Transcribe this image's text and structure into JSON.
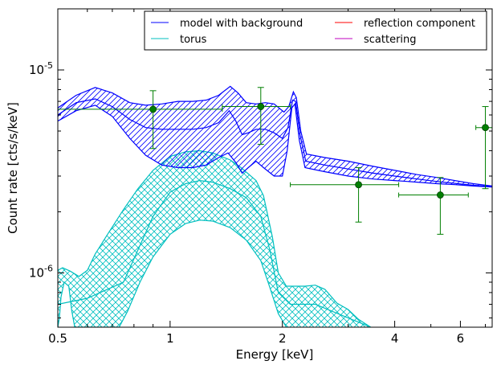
{
  "chart_data": {
    "type": "line",
    "xlabel": "Energy [keV]",
    "ylabel": "Count rate [cts/s/keV]",
    "xscale": "log",
    "yscale": "log",
    "xlim": [
      0.5,
      7.3
    ],
    "ylim": [
      5.4e-07,
      2e-05
    ],
    "x_ticks": [
      {
        "value": 0.5,
        "label": "0.5"
      },
      {
        "value": 1,
        "label": "1"
      },
      {
        "value": 2,
        "label": "2"
      },
      {
        "value": 4,
        "label": "4"
      },
      {
        "value": 6,
        "label": "6"
      }
    ],
    "y_ticks": [
      {
        "value": 1e-06,
        "base": "10",
        "exp": "-6"
      },
      {
        "value": 1e-05,
        "base": "10",
        "exp": "-5"
      }
    ],
    "grid": false,
    "legend": {
      "placement": "top-right",
      "columns": 2,
      "entries": [
        {
          "label": "model with background",
          "color": "#0000ff"
        },
        {
          "label": "torus",
          "color": "#00bfbf"
        },
        {
          "label": "reflection component",
          "color": "#ff0000"
        },
        {
          "label": "scattering",
          "color": "#bf00bf"
        }
      ]
    },
    "series": [
      {
        "name": "model with background",
        "color": "#0000ff",
        "hatch": "diagonal",
        "upper": [
          [
            0.5,
            6.5e-06
          ],
          [
            0.56,
            7.5e-06
          ],
          [
            0.63,
            8.2e-06
          ],
          [
            0.7,
            7.7e-06
          ],
          [
            0.78,
            6.9e-06
          ],
          [
            0.86,
            6.7e-06
          ],
          [
            0.95,
            6.8e-06
          ],
          [
            1.05,
            7e-06
          ],
          [
            1.15,
            7e-06
          ],
          [
            1.25,
            7.1e-06
          ],
          [
            1.35,
            7.5e-06
          ],
          [
            1.45,
            8.3e-06
          ],
          [
            1.52,
            7.7e-06
          ],
          [
            1.6,
            6.9e-06
          ],
          [
            1.7,
            6.8e-06
          ],
          [
            1.8,
            6.9e-06
          ],
          [
            1.9,
            6.8e-06
          ],
          [
            2.02,
            6.2e-06
          ],
          [
            2.08,
            6.6e-06
          ],
          [
            2.14,
            7.8e-06
          ],
          [
            2.18,
            7.3e-06
          ],
          [
            2.24,
            5e-06
          ],
          [
            2.32,
            3.85e-06
          ],
          [
            2.6,
            3.7e-06
          ],
          [
            3.0,
            3.55e-06
          ],
          [
            3.5,
            3.35e-06
          ],
          [
            4.0,
            3.2e-06
          ],
          [
            4.6,
            3.05e-06
          ],
          [
            5.2,
            2.95e-06
          ],
          [
            5.8,
            2.85e-06
          ],
          [
            6.5,
            2.75e-06
          ],
          [
            7.3,
            2.68e-06
          ]
        ],
        "lower": [
          [
            0.5,
            5.6e-06
          ],
          [
            0.56,
            6.3e-06
          ],
          [
            0.63,
            6.7e-06
          ],
          [
            0.7,
            5.9e-06
          ],
          [
            0.78,
            4.6e-06
          ],
          [
            0.86,
            3.8e-06
          ],
          [
            0.95,
            3.4e-06
          ],
          [
            1.05,
            3.3e-06
          ],
          [
            1.15,
            3.3e-06
          ],
          [
            1.25,
            3.4e-06
          ],
          [
            1.35,
            3.7e-06
          ],
          [
            1.43,
            3.9e-06
          ],
          [
            1.5,
            3.5e-06
          ],
          [
            1.56,
            3.1e-06
          ],
          [
            1.62,
            3.3e-06
          ],
          [
            1.7,
            3.55e-06
          ],
          [
            1.78,
            3.3e-06
          ],
          [
            1.9,
            3e-06
          ],
          [
            2.0,
            3e-06
          ],
          [
            2.06,
            4e-06
          ],
          [
            2.12,
            6.5e-06
          ],
          [
            2.16,
            6.8e-06
          ],
          [
            2.22,
            4.5e-06
          ],
          [
            2.3,
            3.3e-06
          ],
          [
            2.6,
            3.15e-06
          ],
          [
            3.0,
            3e-06
          ],
          [
            3.5,
            2.9e-06
          ],
          [
            4.0,
            2.85e-06
          ],
          [
            4.6,
            2.8e-06
          ],
          [
            5.2,
            2.75e-06
          ],
          [
            5.8,
            2.72e-06
          ],
          [
            6.5,
            2.68e-06
          ],
          [
            7.3,
            2.65e-06
          ]
        ],
        "middle": [
          [
            0.5,
            6e-06
          ],
          [
            0.56,
            6.9e-06
          ],
          [
            0.63,
            7.2e-06
          ],
          [
            0.7,
            6.6e-06
          ],
          [
            0.78,
            5.7e-06
          ],
          [
            0.86,
            5.2e-06
          ],
          [
            0.95,
            5.1e-06
          ],
          [
            1.05,
            5.1e-06
          ],
          [
            1.15,
            5.1e-06
          ],
          [
            1.25,
            5.2e-06
          ],
          [
            1.35,
            5.5e-06
          ],
          [
            1.44,
            6.3e-06
          ],
          [
            1.5,
            5.6e-06
          ],
          [
            1.56,
            4.8e-06
          ],
          [
            1.62,
            4.9e-06
          ],
          [
            1.7,
            5.1e-06
          ],
          [
            1.8,
            5.1e-06
          ],
          [
            1.9,
            4.9e-06
          ],
          [
            2.0,
            4.6e-06
          ],
          [
            2.07,
            5.2e-06
          ],
          [
            2.13,
            7.1e-06
          ],
          [
            2.17,
            7e-06
          ],
          [
            2.23,
            4.8e-06
          ],
          [
            2.31,
            3.55e-06
          ],
          [
            2.6,
            3.4e-06
          ],
          [
            3.0,
            3.25e-06
          ],
          [
            3.5,
            3.1e-06
          ],
          [
            4.0,
            3e-06
          ],
          [
            4.6,
            2.9e-06
          ],
          [
            5.2,
            2.82e-06
          ],
          [
            5.8,
            2.76e-06
          ],
          [
            6.5,
            2.7e-06
          ],
          [
            7.3,
            2.66e-06
          ]
        ]
      },
      {
        "name": "torus",
        "color": "#00bfbf",
        "hatch": "cross",
        "upper": [
          [
            0.5,
            1.03e-06
          ],
          [
            0.515,
            1.06e-06
          ],
          [
            0.54,
            1.02e-06
          ],
          [
            0.57,
            9.6e-07
          ],
          [
            0.6,
            1.03e-06
          ],
          [
            0.63,
            1.24e-06
          ],
          [
            0.68,
            1.55e-06
          ],
          [
            0.75,
            2.05e-06
          ],
          [
            0.82,
            2.6e-06
          ],
          [
            0.9,
            3.2e-06
          ],
          [
            1.0,
            3.75e-06
          ],
          [
            1.1,
            3.95e-06
          ],
          [
            1.2,
            4e-06
          ],
          [
            1.3,
            3.9e-06
          ],
          [
            1.45,
            3.6e-06
          ],
          [
            1.55,
            3.3e-06
          ],
          [
            1.7,
            2.85e-06
          ],
          [
            1.78,
            2.4e-06
          ],
          [
            1.88,
            1.5e-06
          ],
          [
            1.95,
            1e-06
          ],
          [
            2.05,
            8.6e-07
          ],
          [
            2.3,
            8.6e-07
          ],
          [
            2.45,
            8.7e-07
          ],
          [
            2.6,
            8.3e-07
          ],
          [
            2.8,
            7.1e-07
          ],
          [
            3.0,
            6.6e-07
          ],
          [
            3.2,
            5.9e-07
          ],
          [
            3.45,
            5.4e-07
          ]
        ],
        "lower": [
          [
            0.5,
            5.4e-07
          ],
          [
            0.505,
            6e-07
          ],
          [
            0.51,
            7.6e-07
          ],
          [
            0.52,
            9e-07
          ],
          [
            0.535,
            8.6e-07
          ],
          [
            0.545,
            6.5e-07
          ],
          [
            0.555,
            5.4e-07
          ],
          [
            0.73,
            5.4e-07
          ],
          [
            0.77,
            6.5e-07
          ],
          [
            0.83,
            9e-07
          ],
          [
            0.9,
            1.2e-06
          ],
          [
            1.0,
            1.55e-06
          ],
          [
            1.1,
            1.75e-06
          ],
          [
            1.2,
            1.82e-06
          ],
          [
            1.3,
            1.8e-06
          ],
          [
            1.45,
            1.67e-06
          ],
          [
            1.6,
            1.45e-06
          ],
          [
            1.75,
            1.15e-06
          ],
          [
            1.85,
            8.5e-07
          ],
          [
            1.95,
            6.3e-07
          ],
          [
            2.05,
            5.4e-07
          ]
        ],
        "middle": [
          [
            0.5,
            7e-07
          ],
          [
            0.6,
            7.5e-07
          ],
          [
            0.75,
            9e-07
          ],
          [
            0.9,
            1.9e-06
          ],
          [
            1.0,
            2.5e-06
          ],
          [
            1.1,
            2.75e-06
          ],
          [
            1.2,
            2.85e-06
          ],
          [
            1.3,
            2.8e-06
          ],
          [
            1.45,
            2.6e-06
          ],
          [
            1.6,
            2.35e-06
          ],
          [
            1.75,
            1.9e-06
          ],
          [
            1.85,
            1.3e-06
          ],
          [
            1.95,
            8e-07
          ],
          [
            2.1,
            7e-07
          ],
          [
            2.45,
            7e-07
          ],
          [
            3.0,
            6e-07
          ],
          [
            3.45,
            5.4e-07
          ]
        ]
      }
    ],
    "data_points": {
      "color": "#007f00",
      "points": [
        {
          "x": 0.9,
          "y": 6.4e-06,
          "xerr": [
            0.5,
            1.38
          ],
          "yerr": [
            4.1e-06,
            7.9e-06
          ]
        },
        {
          "x": 1.75,
          "y": 6.6e-06,
          "xerr": [
            1.38,
            2.1
          ],
          "yerr": [
            4.3e-06,
            8.2e-06
          ]
        },
        {
          "x": 3.2,
          "y": 2.72e-06,
          "xerr": [
            2.1,
            4.1
          ],
          "yerr": [
            1.78e-06,
            3.3e-06
          ]
        },
        {
          "x": 5.3,
          "y": 2.42e-06,
          "xerr": [
            4.1,
            6.3
          ],
          "yerr": [
            1.55e-06,
            2.95e-06
          ]
        },
        {
          "x": 7.0,
          "y": 5.2e-06,
          "xerr": [
            6.6,
            7.5
          ],
          "yerr": [
            2.6e-06,
            6.6e-06
          ]
        }
      ]
    }
  }
}
